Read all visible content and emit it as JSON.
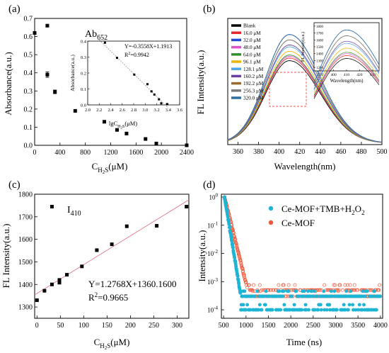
{
  "chart_data": [
    {
      "type": "scatter",
      "panel_label": "(a)",
      "annotation": "Ab",
      "annotation_sub": "652",
      "xlabel": "C",
      "xlabel_sub": "H2S",
      "xlabel_unit": "(μM)",
      "ylabel": "Absorbance(a.u.)",
      "xlim": [
        0,
        2400
      ],
      "ylim": [
        0,
        0.7
      ],
      "xticks": [
        0,
        400,
        800,
        1200,
        1600,
        2000,
        2400
      ],
      "yticks": [
        0,
        0.1,
        0.2,
        0.3,
        0.4,
        0.5,
        0.6,
        0.7
      ],
      "points": [
        {
          "x": 0,
          "y": 0.62,
          "err": 0
        },
        {
          "x": 200,
          "y": 0.66,
          "err": 0
        },
        {
          "x": 200,
          "y": 0.39,
          "err": 0.015
        },
        {
          "x": 320,
          "y": 0.295,
          "err": 0.01
        },
        {
          "x": 640,
          "y": 0.19,
          "err": 0
        },
        {
          "x": 1100,
          "y": 0.13,
          "err": 0
        },
        {
          "x": 1300,
          "y": 0.085,
          "err": 0
        },
        {
          "x": 1450,
          "y": 0.065,
          "err": 0
        },
        {
          "x": 1750,
          "y": 0.035,
          "err": 0
        },
        {
          "x": 1920,
          "y": 0.01,
          "err": 0
        },
        {
          "x": 2400,
          "y": 0.0,
          "err": 0
        }
      ],
      "inset": {
        "xlabel": "lgC",
        "xlabel_sub": "H2S",
        "xlabel_unit": "(μM)",
        "ylabel": "Absorbance(a.u.)",
        "xlim": [
          2.0,
          3.6
        ],
        "ylim": [
          0,
          0.4
        ],
        "xticks": [
          "2.0",
          "2.2",
          "2.4",
          "2.6",
          "2.8",
          "3.0",
          "3.2",
          "3.4",
          "3.6"
        ],
        "yticks": [
          "0.0",
          "0.1",
          "0.2",
          "0.3",
          "0.4"
        ],
        "equation": "Y=-0.3558X+1.1913",
        "r2_label": "R",
        "r2_sup": "2",
        "r2_value": "=0.9942",
        "fit": {
          "slope": -0.3558,
          "intercept": 1.1913,
          "x_range": [
            2.2,
            3.4
          ]
        },
        "points": [
          {
            "x": 2.3,
            "y": 0.39
          },
          {
            "x": 2.51,
            "y": 0.295
          },
          {
            "x": 2.81,
            "y": 0.19
          },
          {
            "x": 3.04,
            "y": 0.13
          },
          {
            "x": 3.11,
            "y": 0.085
          },
          {
            "x": 3.16,
            "y": 0.065
          },
          {
            "x": 3.24,
            "y": 0.035
          },
          {
            "x": 3.28,
            "y": 0.01
          },
          {
            "x": 3.38,
            "y": 0.005
          }
        ]
      }
    },
    {
      "type": "line",
      "panel_label": "(b)",
      "xlabel": "Wavelength(nm)",
      "ylabel": "FL Intensity(a.u.)",
      "xlim": [
        350,
        500
      ],
      "ylim": [
        0,
        2000
      ],
      "xticks": [
        360,
        380,
        400,
        420,
        440,
        460,
        480,
        500
      ],
      "peak_x": 410,
      "width": 30,
      "series": [
        {
          "name": "Blank",
          "color": "#000000",
          "peak": 1330
        },
        {
          "name": "16.0 μM",
          "color": "#e8262b",
          "peak": 1372
        },
        {
          "name": "32.0 μM",
          "color": "#1f4bd6",
          "peak": 1745
        },
        {
          "name": "48.0 μM",
          "color": "#e052c8",
          "peak": 1400
        },
        {
          "name": "64.0 μM",
          "color": "#2f8f2f",
          "peak": 1420
        },
        {
          "name": "96.1 μM",
          "color": "#f0b400",
          "peak": 1480
        },
        {
          "name": "128.1 μM",
          "color": "#4aa8e8",
          "peak": 1550
        },
        {
          "name": "160.2 μM",
          "color": "#6b3fa0",
          "peak": 1580
        },
        {
          "name": "192.2 μM",
          "color": "#9a6b2e",
          "peak": 1660
        },
        {
          "name": "256.3 μM",
          "color": "#7b7b7b",
          "peak": 1660
        },
        {
          "name": "320.0 μM",
          "color": "#2f6f9f",
          "peak": 1745
        }
      ],
      "inset": {
        "ylabel": "FL Intensity(a.u.)",
        "xlabel": "Wavelength(nm)",
        "xticks": [
          "390",
          "400",
          "410",
          "420",
          "430"
        ],
        "yticks": [
          "1200",
          "1300",
          "1400",
          "1500",
          "1600",
          "1700",
          "1800"
        ],
        "xlim": [
          385,
          435
        ],
        "ylim": [
          1150,
          1850
        ]
      }
    },
    {
      "type": "scatter",
      "panel_label": "(c)",
      "annotation": "I",
      "annotation_sub": "410",
      "xlabel": "C",
      "xlabel_sub": "H2S",
      "xlabel_unit": "(μM)",
      "ylabel": "FL Intensity(a.u.)",
      "xlim": [
        -5,
        325
      ],
      "ylim": [
        1250,
        1800
      ],
      "xticks": [
        0,
        50,
        100,
        150,
        200,
        250,
        300
      ],
      "yticks": [
        1300,
        1400,
        1500,
        1600,
        1700,
        1800
      ],
      "equation": "Y=1.2768X+1360.1600",
      "r2_label": "R",
      "r2_sup": "2",
      "r2_value": "=0.9665",
      "fit": {
        "slope": 1.2768,
        "intercept": 1360.16,
        "x_range": [
          -5,
          325
        ]
      },
      "points": [
        {
          "x": 0,
          "y": 1330
        },
        {
          "x": 16,
          "y": 1372
        },
        {
          "x": 32,
          "y": 1745
        },
        {
          "x": 32,
          "y": 1400
        },
        {
          "x": 48,
          "y": 1408
        },
        {
          "x": 48,
          "y": 1420
        },
        {
          "x": 64,
          "y": 1443
        },
        {
          "x": 96.1,
          "y": 1480
        },
        {
          "x": 128.1,
          "y": 1552
        },
        {
          "x": 160.2,
          "y": 1578
        },
        {
          "x": 192.2,
          "y": 1658
        },
        {
          "x": 256.3,
          "y": 1660
        },
        {
          "x": 320,
          "y": 1745
        }
      ]
    },
    {
      "type": "scatter",
      "panel_label": "(d)",
      "xlabel": "Time (ns)",
      "ylabel": "Intensity(a.u.)",
      "xlim": [
        450,
        4050
      ],
      "ylim_log": [
        -4.3,
        0.1
      ],
      "xticks": [
        500,
        1000,
        1500,
        2000,
        2500,
        3000,
        3500,
        4000
      ],
      "yticks_log": [
        -4,
        -3,
        -2,
        -1,
        0
      ],
      "series": [
        {
          "name": "Ce-MOF+TMB+H",
          "sub": "2",
          "name2": "O",
          "sub2": "2",
          "color": "#1fb5d4",
          "tau": 45,
          "floor_levels": [
            -4.0,
            -3.52
          ]
        },
        {
          "name": "Ce-MOF",
          "color": "#f05a3c",
          "tau": 68,
          "floor_levels": [
            -3.3,
            -3.52
          ]
        }
      ]
    }
  ]
}
